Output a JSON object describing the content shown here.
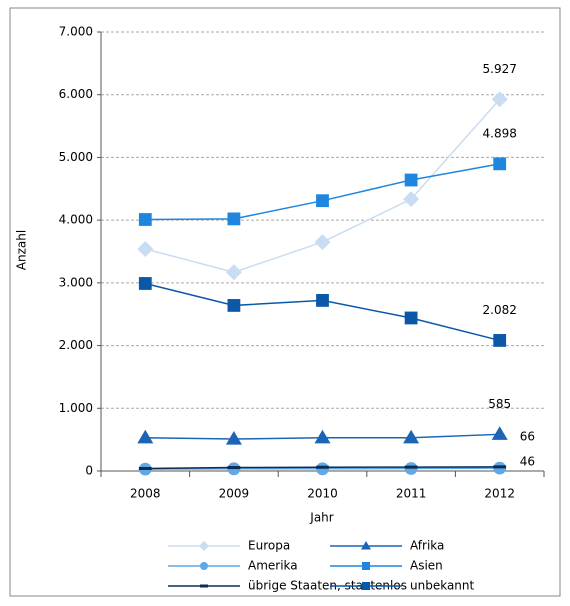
{
  "chart_data": {
    "type": "line",
    "x_label": "Jahr",
    "y_label": "Anzahl",
    "categories": [
      "2008",
      "2009",
      "2010",
      "2011",
      "2012"
    ],
    "ylim": [
      0,
      7000
    ],
    "yticks": [
      0,
      {
        "value": 1000,
        "label": "1.000"
      },
      {
        "value": 2000,
        "label": "2.000"
      },
      {
        "value": 3000,
        "label": "3.000"
      },
      {
        "value": 4000,
        "label": "4.000"
      },
      {
        "value": 5000,
        "label": "5.000"
      },
      {
        "value": 6000,
        "label": "6.000"
      },
      {
        "value": 7000,
        "label": "7.000"
      }
    ],
    "grid": true,
    "series": [
      {
        "name": "Europa",
        "color": "#c9ddf2",
        "marker": "diamond",
        "values": [
          3540,
          3170,
          3650,
          4335,
          5927
        ],
        "value_labels": [
          null,
          null,
          null,
          null,
          "5.927"
        ]
      },
      {
        "name": "Afrika",
        "color": "#1c64b4",
        "marker": "triangle",
        "values": [
          530,
          510,
          530,
          530,
          585
        ],
        "value_labels": [
          null,
          null,
          null,
          null,
          "585"
        ]
      },
      {
        "name": "Amerika",
        "color": "#5fa8e6",
        "marker": "circle",
        "values": [
          30,
          35,
          35,
          40,
          46
        ],
        "value_labels": [
          null,
          null,
          null,
          null,
          "46"
        ]
      },
      {
        "name": "Asien",
        "color": "#1f86e0",
        "marker": "square",
        "values": [
          4010,
          4020,
          4310,
          4640,
          4898
        ],
        "value_labels": [
          null,
          null,
          null,
          null,
          "4.898"
        ]
      },
      {
        "name": "übrige Staaten, staatenlos",
        "color": "#0d2c54",
        "marker": "dash",
        "values": [
          40,
          55,
          60,
          62,
          66
        ],
        "value_labels": [
          null,
          null,
          null,
          null,
          "66"
        ]
      },
      {
        "name": "unbekannt",
        "color": "#0b58a8",
        "marker": "square",
        "values": [
          2990,
          2640,
          2720,
          2440,
          2082
        ],
        "value_labels": [
          null,
          null,
          null,
          null,
          "2.082"
        ]
      }
    ]
  }
}
